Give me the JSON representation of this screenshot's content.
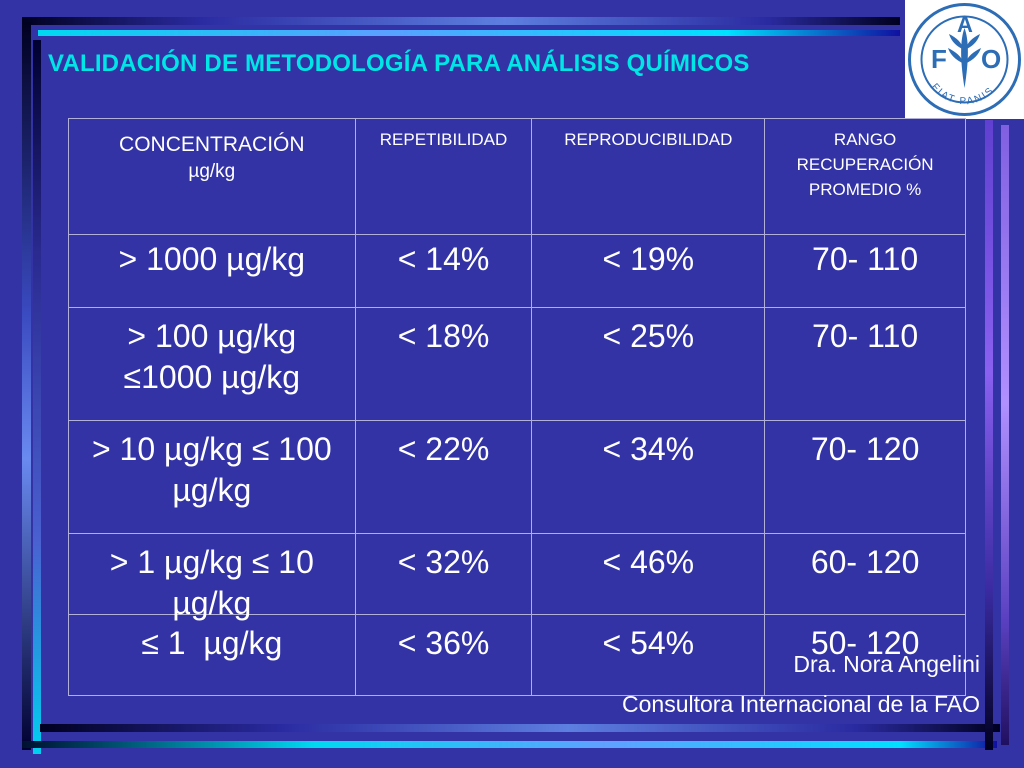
{
  "title": "VALIDACIÓN DE METODOLOGÍA PARA ANÁLISIS QUÍMICOS",
  "logo": {
    "letters": [
      "F",
      "A",
      "O"
    ],
    "motto": "FIAT PANIS",
    "colors": {
      "primary": "#2d6db5"
    }
  },
  "table": {
    "headers": [
      {
        "line1": "CONCENTRACIÓN",
        "line2": "µg/kg"
      },
      {
        "line1": "REPETIBILIDAD"
      },
      {
        "line1": "REPRODUCIBILIDAD"
      },
      {
        "line1": "RANGO",
        "line2": "RECUPERACIÓN",
        "line3": "PROMEDIO %"
      }
    ],
    "rows": [
      {
        "conc_line1": "> 1000 µg/kg",
        "conc_line2": "",
        "rep": "< 14%",
        "repro": "< 19%",
        "range": "70- 110"
      },
      {
        "conc_line1": "> 100 µg/kg",
        "conc_line2": "≤1000 µg/kg",
        "rep": "< 18%",
        "repro": "< 25%",
        "range": "70- 110"
      },
      {
        "conc_line1": "> 10 µg/kg ≤ 100",
        "conc_line2": "µg/kg",
        "rep": "< 22%",
        "repro": "< 34%",
        "range": "70- 120"
      },
      {
        "conc_line1": "> 1 µg/kg ≤ 10",
        "conc_line2": "µg/kg",
        "rep": "< 32%",
        "repro": "< 46%",
        "range": "60- 120"
      },
      {
        "conc_line1": "≤ 1  µg/kg",
        "conc_line2": "",
        "rep": "< 36%",
        "repro": "< 54%",
        "range": "50- 120"
      }
    ]
  },
  "footer": {
    "author": "Dra. Nora Angelini",
    "role": "Consultora Internacional de la FAO"
  },
  "colors": {
    "background": "#3333a6",
    "title": "#00e5e5",
    "text": "#ffffff"
  }
}
